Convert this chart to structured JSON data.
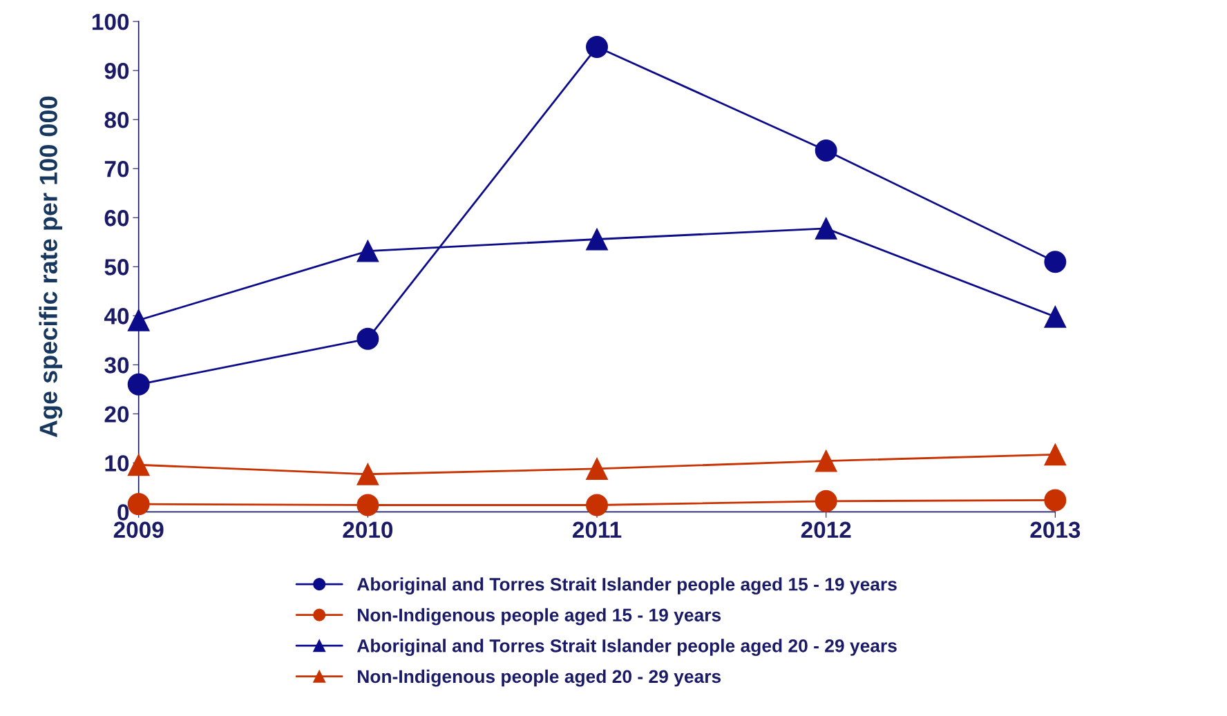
{
  "chart_data": {
    "type": "line",
    "ylabel": "Age specific rate per 100 000",
    "categories": [
      "2009",
      "2010",
      "2011",
      "2012",
      "2013"
    ],
    "ylim": [
      0,
      100
    ],
    "yticks": [
      0,
      10,
      20,
      30,
      40,
      50,
      60,
      70,
      80,
      90,
      100
    ],
    "grid": false,
    "legend": "bottom",
    "line_style": "solid",
    "series": [
      {
        "name": "Aboriginal and Torres Strait Islander people aged 15 - 19 years",
        "color": "#0c0c8a",
        "marker": "circle",
        "values": [
          26.0,
          35.3,
          94.8,
          73.7,
          51.0
        ]
      },
      {
        "name": "Non-Indigenous people aged 15 - 19 years",
        "color": "#c83200",
        "marker": "circle",
        "values": [
          1.6,
          1.4,
          1.4,
          2.2,
          2.4
        ]
      },
      {
        "name": "Aboriginal and Torres Strait Islander people aged 20 - 29 years",
        "color": "#0c0c8a",
        "marker": "triangle",
        "values": [
          39.1,
          53.2,
          55.6,
          57.8,
          39.8
        ]
      },
      {
        "name": "Non-Indigenous people aged 20 - 29 years",
        "color": "#c83200",
        "marker": "triangle",
        "values": [
          9.6,
          7.7,
          8.8,
          10.4,
          11.7
        ]
      }
    ]
  }
}
